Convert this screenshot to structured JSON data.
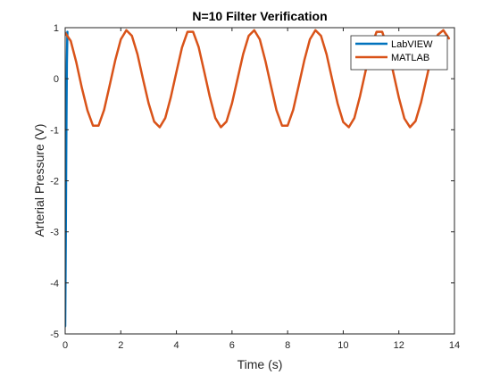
{
  "chart_data": {
    "type": "line",
    "title": "N=10 Filter Verification",
    "xlabel": "Time (s)",
    "ylabel": "Arterial Pressure (V)",
    "xlim": [
      0,
      14
    ],
    "ylim": [
      -5,
      1
    ],
    "xticks": [
      0,
      2,
      4,
      6,
      8,
      10,
      12,
      14
    ],
    "yticks": [
      -5,
      -4,
      -3,
      -2,
      -1,
      0,
      1
    ],
    "grid": false,
    "legend_position": "top-right",
    "series": [
      {
        "name": "LabVIEW",
        "color": "#0072BD",
        "x": [
          0.0,
          0.02,
          0.04,
          0.06,
          0.08
        ],
        "y": [
          -4.85,
          -3.2,
          -1.2,
          0.3,
          0.92
        ]
      },
      {
        "name": "MATLAB",
        "color": "#D95319",
        "x": [
          0.0,
          0.2,
          0.4,
          0.6,
          0.8,
          1.0,
          1.2,
          1.4,
          1.6,
          1.8,
          2.0,
          2.2,
          2.4,
          2.6,
          2.8,
          3.0,
          3.2,
          3.4,
          3.6,
          3.8,
          4.0,
          4.2,
          4.4,
          4.6,
          4.8,
          5.0,
          5.2,
          5.4,
          5.6,
          5.8,
          6.0,
          6.2,
          6.4,
          6.6,
          6.8,
          7.0,
          7.2,
          7.4,
          7.6,
          7.8,
          8.0,
          8.2,
          8.4,
          8.6,
          8.8,
          9.0,
          9.2,
          9.4,
          9.6,
          9.8,
          10.0,
          10.2,
          10.4,
          10.6,
          10.8,
          11.0,
          11.2,
          11.4,
          11.6,
          11.8,
          12.0,
          12.2,
          12.4,
          12.6,
          12.8,
          13.0,
          13.2,
          13.4,
          13.6,
          13.8
        ],
        "y": [
          0.9,
          0.74,
          0.32,
          -0.18,
          -0.62,
          -0.92,
          -0.92,
          -0.61,
          -0.13,
          0.36,
          0.77,
          0.95,
          0.84,
          0.48,
          -0.01,
          -0.48,
          -0.84,
          -0.95,
          -0.77,
          -0.36,
          0.13,
          0.61,
          0.92,
          0.92,
          0.62,
          0.14,
          -0.35,
          -0.77,
          -0.95,
          -0.84,
          -0.48,
          0.0,
          0.48,
          0.84,
          0.95,
          0.77,
          0.35,
          -0.14,
          -0.62,
          -0.92,
          -0.92,
          -0.61,
          -0.13,
          0.36,
          0.77,
          0.95,
          0.84,
          0.48,
          -0.01,
          -0.49,
          -0.85,
          -0.95,
          -0.77,
          -0.35,
          0.14,
          0.62,
          0.92,
          0.92,
          0.6,
          0.12,
          -0.37,
          -0.78,
          -0.95,
          -0.83,
          -0.46,
          0.02,
          0.5,
          0.86,
          0.95,
          0.79
        ]
      }
    ]
  }
}
